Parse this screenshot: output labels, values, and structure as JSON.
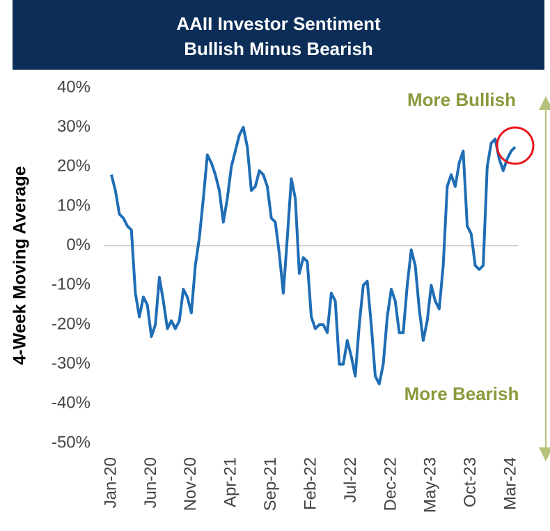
{
  "chart_data": {
    "type": "line",
    "title": "AAII Investor Sentiment",
    "subtitle": "Bullish Minus Bearish",
    "y_label": "4-Week Moving Average",
    "annotations": [
      "More Bullish",
      "More Bearish"
    ],
    "categories": [
      "Jan-20",
      null,
      null,
      null,
      null,
      null,
      null,
      null,
      null,
      null,
      "Jun-20",
      null,
      null,
      null,
      null,
      null,
      null,
      null,
      null,
      null,
      "Nov-20",
      null,
      null,
      null,
      null,
      null,
      null,
      null,
      null,
      null,
      "Apr-21",
      null,
      null,
      null,
      null,
      null,
      null,
      null,
      null,
      null,
      "Sep-21",
      null,
      null,
      null,
      null,
      null,
      null,
      null,
      null,
      null,
      "Feb-22",
      null,
      null,
      null,
      null,
      null,
      null,
      null,
      null,
      null,
      "Jul-22",
      null,
      null,
      null,
      null,
      null,
      null,
      null,
      null,
      null,
      "Dec-22",
      null,
      null,
      null,
      null,
      null,
      null,
      null,
      null,
      null,
      "May-23",
      null,
      null,
      null,
      null,
      null,
      null,
      null,
      null,
      null,
      "Oct-23",
      null,
      null,
      null,
      null,
      null,
      null,
      null,
      null,
      null,
      "Mar-24",
      null
    ],
    "series": [
      {
        "name": "Bullish Minus Bearish",
        "color": "#1f6db5",
        "values": [
          18,
          14,
          8,
          7,
          5,
          4,
          -12,
          -18,
          -13,
          -15,
          -23,
          -20,
          -8,
          -14,
          -21,
          -19,
          -21,
          -19,
          -11,
          -13,
          -17,
          -5,
          2,
          12,
          23,
          21,
          18,
          14,
          6,
          12,
          20,
          24,
          28,
          30,
          25,
          14,
          15,
          19,
          18,
          15,
          7,
          6,
          -2,
          -12,
          2,
          17,
          12,
          -7,
          -3,
          -4,
          -18,
          -21,
          -20,
          -20,
          -22,
          -12,
          -14,
          -30,
          -30,
          -24,
          -28,
          -33,
          -20,
          -10,
          -9,
          -20,
          -33,
          -35,
          -30,
          -18,
          -11,
          -14,
          -22,
          -22,
          -10,
          -1,
          -5,
          -16,
          -24,
          -19,
          -10,
          -14,
          -16,
          -5,
          15,
          18,
          15,
          21,
          24,
          5,
          3,
          -5,
          -6,
          -5,
          20,
          26,
          27,
          22,
          19,
          22,
          24,
          25
        ]
      }
    ],
    "ylim": [
      -50,
      40
    ],
    "yticks": [
      {
        "value": -50,
        "label": "-50%"
      },
      {
        "value": -40,
        "label": "-40%"
      },
      {
        "value": -30,
        "label": "-30%"
      },
      {
        "value": -20,
        "label": "-20%"
      },
      {
        "value": -10,
        "label": "-10%"
      },
      {
        "value": 0,
        "label": "0%"
      },
      {
        "value": 10,
        "label": "10%"
      },
      {
        "value": 20,
        "label": "20%"
      },
      {
        "value": 30,
        "label": "30%"
      },
      {
        "value": 40,
        "label": "40%"
      }
    ],
    "zero_line": true,
    "highlight_color": "#e8141b",
    "annotation_color": "#8a9a3b"
  }
}
